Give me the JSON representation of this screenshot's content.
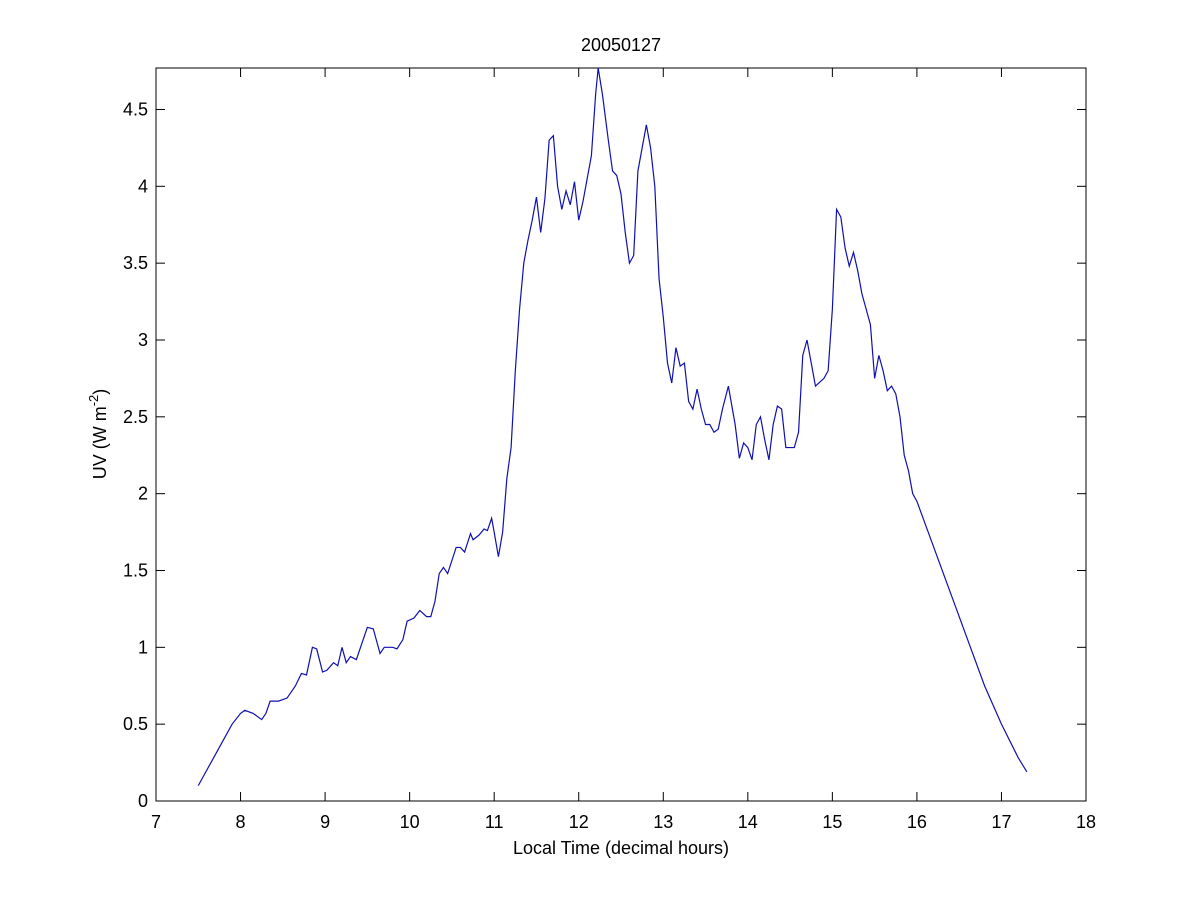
{
  "chart_data": {
    "type": "line",
    "title": "20050127",
    "xlabel": "Local Time (decimal hours)",
    "ylabel": {
      "before": "UV (W m",
      "sup": "-2",
      "after": ")"
    },
    "xlim": [
      7,
      18
    ],
    "xticks": [
      7,
      8,
      9,
      10,
      11,
      12,
      13,
      14,
      15,
      16,
      17,
      18
    ],
    "ylim": [
      0,
      4.77
    ],
    "yticks": [
      0,
      0.5,
      1,
      1.5,
      2,
      2.5,
      3,
      3.5,
      4,
      4.5
    ],
    "x": [
      7.5,
      7.6,
      7.7,
      7.8,
      7.9,
      8.0,
      8.05,
      8.15,
      8.25,
      8.3,
      8.35,
      8.45,
      8.55,
      8.65,
      8.72,
      8.78,
      8.85,
      8.9,
      8.97,
      9.02,
      9.1,
      9.15,
      9.2,
      9.25,
      9.3,
      9.37,
      9.45,
      9.5,
      9.57,
      9.65,
      9.7,
      9.8,
      9.85,
      9.92,
      9.97,
      10.05,
      10.12,
      10.2,
      10.25,
      10.3,
      10.35,
      10.4,
      10.45,
      10.55,
      10.6,
      10.65,
      10.72,
      10.75,
      10.82,
      10.88,
      10.92,
      10.97,
      11.0,
      11.05,
      11.1,
      11.15,
      11.2,
      11.25,
      11.3,
      11.35,
      11.4,
      11.45,
      11.5,
      11.55,
      11.6,
      11.65,
      11.7,
      11.75,
      11.8,
      11.85,
      11.9,
      11.95,
      12.0,
      12.05,
      12.1,
      12.15,
      12.2,
      12.23,
      12.28,
      12.35,
      12.4,
      12.45,
      12.5,
      12.55,
      12.6,
      12.65,
      12.7,
      12.8,
      12.85,
      12.9,
      12.95,
      13.0,
      13.05,
      13.1,
      13.15,
      13.2,
      13.25,
      13.3,
      13.35,
      13.4,
      13.45,
      13.5,
      13.55,
      13.6,
      13.65,
      13.7,
      13.77,
      13.85,
      13.9,
      13.95,
      14.0,
      14.05,
      14.1,
      14.15,
      14.2,
      14.25,
      14.3,
      14.35,
      14.4,
      14.45,
      14.55,
      14.6,
      14.65,
      14.7,
      14.75,
      14.8,
      14.9,
      14.95,
      15.0,
      15.05,
      15.1,
      15.15,
      15.2,
      15.25,
      15.3,
      15.35,
      15.4,
      15.45,
      15.5,
      15.55,
      15.6,
      15.65,
      15.7,
      15.75,
      15.8,
      15.85,
      15.9,
      15.95,
      16.0,
      16.2,
      16.4,
      16.6,
      16.8,
      17.0,
      17.2,
      17.3
    ],
    "series": [
      {
        "color": "#1010b0",
        "values": [
          0.1,
          0.2,
          0.3,
          0.4,
          0.5,
          0.57,
          0.59,
          0.57,
          0.53,
          0.57,
          0.65,
          0.65,
          0.67,
          0.75,
          0.83,
          0.82,
          1.0,
          0.99,
          0.84,
          0.85,
          0.9,
          0.88,
          1.0,
          0.9,
          0.94,
          0.92,
          1.05,
          1.13,
          1.12,
          0.96,
          1.0,
          1.0,
          0.99,
          1.05,
          1.17,
          1.19,
          1.24,
          1.2,
          1.2,
          1.3,
          1.48,
          1.52,
          1.48,
          1.65,
          1.65,
          1.62,
          1.74,
          1.7,
          1.73,
          1.77,
          1.76,
          1.84,
          1.75,
          1.59,
          1.75,
          2.1,
          2.3,
          2.8,
          3.2,
          3.5,
          3.65,
          3.78,
          3.93,
          3.7,
          3.92,
          4.3,
          4.33,
          4.0,
          3.85,
          3.97,
          3.88,
          4.03,
          3.78,
          3.9,
          4.05,
          4.2,
          4.6,
          4.77,
          4.6,
          4.3,
          4.1,
          4.07,
          3.95,
          3.7,
          3.5,
          3.55,
          4.1,
          4.4,
          4.25,
          4.0,
          3.4,
          3.15,
          2.85,
          2.72,
          2.95,
          2.83,
          2.85,
          2.6,
          2.55,
          2.68,
          2.55,
          2.45,
          2.45,
          2.4,
          2.42,
          2.55,
          2.7,
          2.45,
          2.23,
          2.33,
          2.3,
          2.22,
          2.45,
          2.5,
          2.35,
          2.22,
          2.45,
          2.57,
          2.55,
          2.3,
          2.3,
          2.4,
          2.9,
          3.0,
          2.85,
          2.7,
          2.75,
          2.8,
          3.2,
          3.85,
          3.8,
          3.6,
          3.48,
          3.57,
          3.45,
          3.3,
          3.2,
          3.1,
          2.75,
          2.9,
          2.8,
          2.67,
          2.7,
          2.65,
          2.5,
          2.25,
          2.15,
          2.0,
          1.95,
          1.65,
          1.35,
          1.05,
          0.75,
          0.5,
          0.28,
          0.19
        ]
      }
    ]
  }
}
